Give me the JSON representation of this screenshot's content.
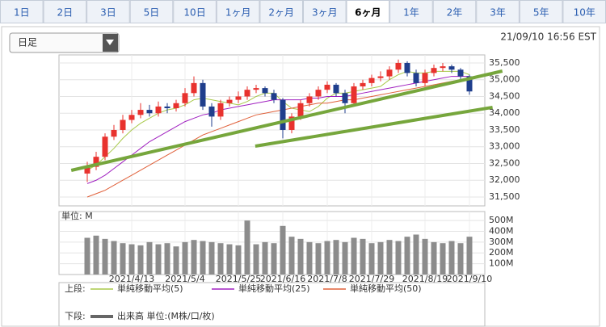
{
  "tabs": [
    "1日",
    "2日",
    "3日",
    "5日",
    "10日",
    "1ヶ月",
    "2ヶ月",
    "3ヶ月",
    "6ヶ月",
    "1年",
    "2年",
    "3年",
    "5年",
    "10年"
  ],
  "selected_tab": 8,
  "dropdown": "日足",
  "timestamp": "21/09/10 16:56 EST",
  "chart_data": {
    "type": "candlestick",
    "categories": [
      null,
      null,
      null,
      null,
      null,
      "2021/4/13",
      null,
      null,
      null,
      null,
      null,
      "2021/5/4",
      null,
      null,
      null,
      null,
      null,
      "2021/5/25",
      null,
      null,
      null,
      null,
      "2021/6/16",
      null,
      null,
      null,
      null,
      "2021/7/8",
      null,
      null,
      null,
      null,
      "2021/7/29",
      null,
      null,
      null,
      null,
      null,
      "2021/8/19",
      null,
      null,
      null,
      null,
      "2021/9/10"
    ],
    "open": [
      32200,
      32400,
      32700,
      33300,
      33500,
      33800,
      33950,
      34100,
      34000,
      34200,
      34150,
      34300,
      34600,
      34900,
      34200,
      33900,
      34300,
      34400,
      34500,
      34700,
      34750,
      34600,
      34400,
      33500,
      33900,
      34300,
      34500,
      34700,
      34850,
      34600,
      34300,
      34800,
      34900,
      35050,
      35100,
      35300,
      35500,
      35200,
      34900,
      35200,
      35350,
      35400,
      35300,
      35100
    ],
    "high": [
      32550,
      32850,
      33400,
      33650,
      33950,
      34100,
      34300,
      34250,
      34350,
      34300,
      34400,
      34750,
      35100,
      35000,
      34300,
      34400,
      34500,
      34650,
      34800,
      34850,
      34800,
      34700,
      34450,
      34000,
      34400,
      34600,
      34800,
      34950,
      34900,
      34700,
      34900,
      35000,
      35150,
      35250,
      35400,
      35600,
      35550,
      35300,
      35300,
      35450,
      35500,
      35450,
      35350,
      35150
    ],
    "low": [
      31950,
      32300,
      32600,
      33200,
      33400,
      33700,
      33850,
      33900,
      33900,
      34000,
      34050,
      34200,
      34500,
      34100,
      33600,
      33800,
      34200,
      34300,
      34400,
      34600,
      34500,
      34300,
      33250,
      33400,
      33800,
      34200,
      34400,
      34600,
      34500,
      34000,
      34200,
      34700,
      34800,
      34950,
      35000,
      35200,
      35100,
      34800,
      34800,
      35100,
      35250,
      35200,
      35000,
      34550
    ],
    "close": [
      32400,
      32700,
      33300,
      33500,
      33800,
      33950,
      34100,
      34000,
      34200,
      34150,
      34300,
      34600,
      34900,
      34200,
      33900,
      34300,
      34400,
      34500,
      34700,
      34750,
      34600,
      34400,
      33500,
      33900,
      34300,
      34500,
      34700,
      34850,
      34600,
      34300,
      34800,
      34900,
      35050,
      35100,
      35300,
      35500,
      35200,
      34900,
      35200,
      35350,
      35400,
      35300,
      35100,
      34650
    ],
    "up_color": "#e8322e",
    "down_color": "#1f3e8c",
    "ylim": [
      31235,
      35740
    ],
    "yticks": [
      {
        "value": 31500,
        "label": "31,500"
      },
      {
        "value": 32000,
        "label": "32,000"
      },
      {
        "value": 32500,
        "label": "32,500"
      },
      {
        "value": 33000,
        "label": "33,000"
      },
      {
        "value": 33500,
        "label": "33,500"
      },
      {
        "value": 34000,
        "label": "34,000"
      },
      {
        "value": 34500,
        "label": "34,500"
      },
      {
        "value": 35000,
        "label": "35,000"
      },
      {
        "value": 35500,
        "label": "35,500"
      }
    ],
    "ma_lines": [
      {
        "name": "単純移動平均(5)",
        "color": "#a8c94a",
        "values": [
          32300,
          32450,
          32700,
          32950,
          33250,
          33500,
          33700,
          33850,
          34000,
          34100,
          34150,
          34250,
          34400,
          34450,
          34400,
          34350,
          34300,
          34250,
          34350,
          34500,
          34600,
          34600,
          34350,
          34150,
          34100,
          34050,
          34200,
          34450,
          34600,
          34600,
          34650,
          34700,
          34750,
          34800,
          35000,
          35150,
          35250,
          35200,
          35200,
          35250,
          35250,
          35250,
          35250,
          35150
        ]
      },
      {
        "name": "単純移動平均(25)",
        "color": "#a020c0",
        "values": [
          31900,
          32000,
          32150,
          32350,
          32550,
          32750,
          32950,
          33150,
          33300,
          33450,
          33600,
          33750,
          33850,
          33950,
          34000,
          34100,
          34150,
          34200,
          34250,
          34300,
          34350,
          34400,
          34400,
          34400,
          34400,
          34450,
          34450,
          34500,
          34500,
          34500,
          34550,
          34600,
          34650,
          34700,
          34750,
          34800,
          34850,
          34900,
          34950,
          35000,
          35050,
          35100,
          35100,
          35100
        ]
      },
      {
        "name": "単純移動平均(50)",
        "color": "#e0603a",
        "values": [
          31500,
          31600,
          31700,
          31850,
          32000,
          32150,
          32300,
          32450,
          32600,
          32750,
          32900,
          33050,
          33200,
          33350,
          33450,
          33550,
          33650,
          33750,
          33850,
          33950,
          34000,
          34050,
          34100,
          34150,
          34200,
          34250,
          34300,
          34300,
          34350,
          34400,
          34400,
          34450,
          34500,
          34550,
          34600,
          34650,
          34700,
          34750,
          34800,
          34850,
          34900,
          34950,
          35000,
          35000
        ]
      }
    ],
    "trendlines": [
      {
        "color": "#76a63c",
        "x": [
          -1.8,
          46.7
        ],
        "y": [
          32295,
          35258
        ]
      },
      {
        "color": "#76a63c",
        "x": [
          18.9,
          45.6
        ],
        "y": [
          33018,
          34175
        ]
      }
    ],
    "volume": {
      "type": "bar",
      "label": "単位: M",
      "color": "#8c8c8c",
      "values": [
        340,
        360,
        330,
        310,
        290,
        280,
        270,
        300,
        280,
        290,
        260,
        300,
        320,
        310,
        300,
        290,
        280,
        270,
        500,
        280,
        300,
        290,
        450,
        350,
        330,
        300,
        290,
        310,
        320,
        300,
        340,
        330,
        290,
        300,
        320,
        310,
        350,
        370,
        330,
        300,
        290,
        310,
        290,
        350
      ],
      "ylim": [
        0,
        583
      ],
      "yticks": [
        {
          "value": 100,
          "label": "100M"
        },
        {
          "value": 200,
          "label": "200M"
        },
        {
          "value": 300,
          "label": "300M"
        },
        {
          "value": 400,
          "label": "400M"
        },
        {
          "value": 500,
          "label": "500M"
        }
      ]
    },
    "legend": {
      "upper_label": "上段:",
      "lower_label": "下段:",
      "volume_name": "出来高 単位:(M株/口/枚)"
    }
  }
}
